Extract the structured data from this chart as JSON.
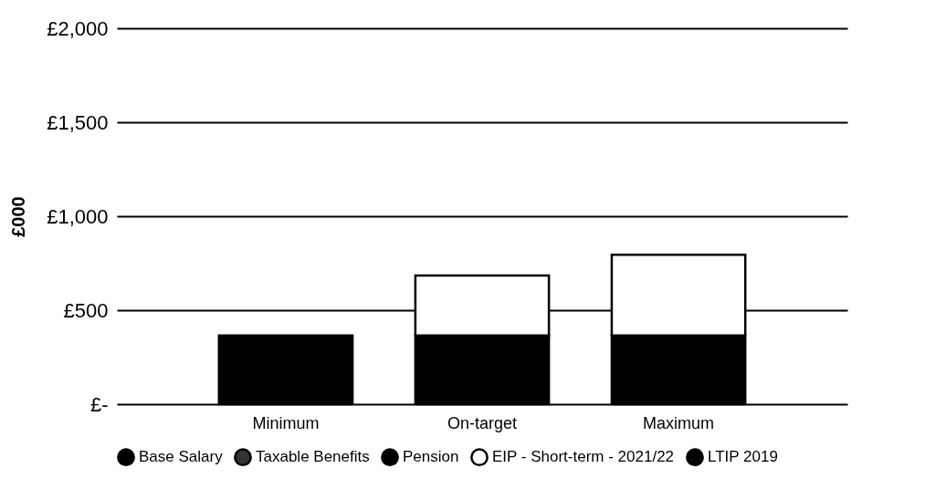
{
  "chart_data": {
    "type": "bar",
    "stacked": true,
    "ylabel": "£000",
    "categories": [
      "Minimum",
      "On-target",
      "Maximum"
    ],
    "series": [
      {
        "name": "Base Salary",
        "color": "#000000",
        "values": [
          365,
          365,
          365
        ]
      },
      {
        "name": "Taxable Benefits",
        "color": "#333333",
        "values": [
          null,
          null,
          null
        ]
      },
      {
        "name": "Pension",
        "color": "#000000",
        "values": [
          null,
          null,
          null
        ]
      },
      {
        "name": "EIP - Short-term - 2021/22",
        "color": "#ffffff",
        "values": [
          null,
          320,
          430
        ]
      },
      {
        "name": "LTIP 2019",
        "color": "#000000",
        "values": [
          null,
          null,
          null
        ]
      }
    ],
    "ylim": [
      0,
      2000
    ],
    "yticks": [
      {
        "value": 0,
        "label": "£-"
      },
      {
        "value": 500,
        "label": "£500"
      },
      {
        "value": 1000,
        "label": "£1,000"
      },
      {
        "value": 1500,
        "label": "£1,500"
      },
      {
        "value": 2000,
        "label": "£2,000"
      }
    ],
    "grid": "y",
    "legend": "bottom"
  }
}
